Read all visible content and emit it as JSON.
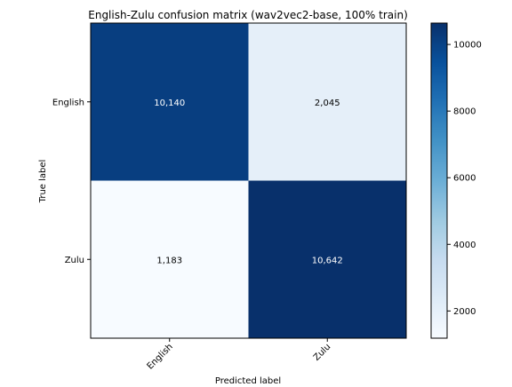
{
  "chart_data": {
    "type": "heatmap",
    "title": "English-Zulu confusion matrix (wav2vec2-base, 100% train)",
    "xlabel": "Predicted label",
    "ylabel": "True label",
    "x_categories": [
      "English",
      "Zulu"
    ],
    "y_categories": [
      "English",
      "Zulu"
    ],
    "values": [
      [
        10140,
        2045
      ],
      [
        1183,
        10642
      ]
    ],
    "cell_labels": [
      [
        "10,140",
        "2,045"
      ],
      [
        "1,183",
        "10,642"
      ]
    ],
    "colormap": "Blues",
    "color_range": [
      1183,
      10642
    ],
    "colorbar_ticks": [
      2000,
      4000,
      6000,
      8000,
      10000
    ],
    "colorbar_tick_labels": [
      "2000",
      "4000",
      "6000",
      "8000",
      "10000"
    ],
    "x_tick_rotation": 45,
    "grid": false,
    "legend": "colorbar right"
  }
}
